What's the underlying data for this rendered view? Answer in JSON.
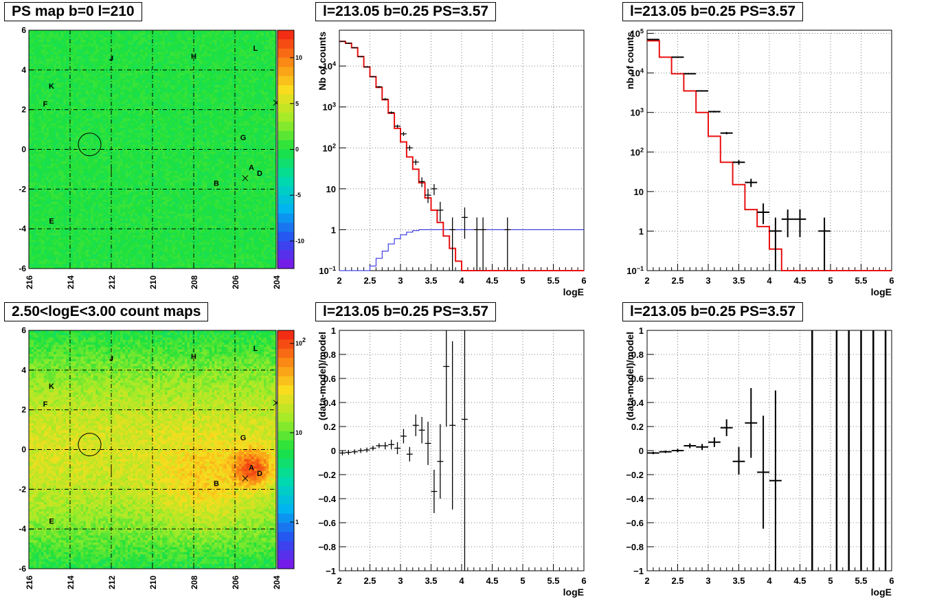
{
  "chart_data": [
    {
      "id": "ps_map",
      "type": "heatmap",
      "title": "PS map b=0 l=210",
      "xlim": [
        216,
        204
      ],
      "ylim": [
        -6,
        6
      ],
      "x_ticks": [
        "216",
        "214",
        "212",
        "210",
        "208",
        "206",
        "204"
      ],
      "y_ticks": [
        "-6",
        "-4",
        "-2",
        "0",
        "2",
        "4",
        "6"
      ],
      "colorbar": {
        "scale": "linear",
        "range": [
          -13,
          13
        ],
        "ticks": [
          "-10",
          "-5",
          "0",
          "5",
          "10"
        ]
      },
      "base_color": "#3fe23f",
      "grid": true,
      "circle": {
        "l": 213.05,
        "b": 0.25,
        "r": 0.55
      },
      "sources": [
        {
          "name": "J",
          "l": 212.0,
          "b": 4.6
        },
        {
          "name": "H",
          "l": 208.0,
          "b": 4.7
        },
        {
          "name": "L",
          "l": 205.0,
          "b": 5.1
        },
        {
          "name": "K",
          "l": 214.9,
          "b": 3.2
        },
        {
          "name": "F",
          "l": 215.2,
          "b": 2.3
        },
        {
          "name": "G",
          "l": 205.6,
          "b": 0.6
        },
        {
          "name": "A",
          "l": 205.2,
          "b": -0.9
        },
        {
          "name": "D",
          "l": 204.8,
          "b": -1.2
        },
        {
          "name": "B",
          "l": 206.9,
          "b": -1.7
        },
        {
          "name": "E",
          "l": 214.9,
          "b": -3.6
        }
      ],
      "markers": [
        {
          "l": 205.5,
          "b": -1.45
        },
        {
          "l": 204.0,
          "b": 2.35
        }
      ]
    },
    {
      "id": "spec_fine",
      "type": "line",
      "title": "l=213.05 b=0.25 PS=3.57",
      "xlabel": "logE",
      "ylabel": "Nb of counts",
      "xlim": [
        2,
        6
      ],
      "ylim": [
        0.1,
        75000
      ],
      "yscale": "log",
      "x_ticks": [
        "2",
        "2.5",
        "3",
        "3.5",
        "4",
        "4.5",
        "5",
        "5.5",
        "6"
      ],
      "y_ticks": [
        {
          "v": 0.1,
          "label": "10",
          "sup": "−1"
        },
        {
          "v": 1,
          "label": "1"
        },
        {
          "v": 10,
          "label": "10"
        },
        {
          "v": 100,
          "label": "10",
          "sup": "2"
        },
        {
          "v": 1000,
          "label": "10",
          "sup": "3"
        },
        {
          "v": 10000,
          "label": "10",
          "sup": "4"
        }
      ],
      "grid": true,
      "bin_width": 0.1,
      "model": [
        40000,
        36000,
        28000,
        17000,
        9500,
        5500,
        3000,
        1500,
        700,
        300,
        140,
        60,
        30,
        14,
        6,
        3,
        1.5,
        0.7,
        0.35,
        0.17,
        0.1,
        0.1,
        0.1,
        0.1,
        0.1,
        0.1,
        0.1,
        0.1,
        0.1,
        0.1,
        0.1,
        0.1,
        0.1,
        0.1,
        0.1,
        0.1,
        0.1,
        0.1,
        0.1,
        0.1
      ],
      "exposure": [
        0.1,
        0.1,
        0.1,
        0.1,
        0.1,
        0.13,
        0.2,
        0.3,
        0.45,
        0.6,
        0.75,
        0.87,
        0.95,
        1,
        1,
        1,
        1,
        1,
        1,
        1,
        1,
        1,
        1,
        1,
        1,
        1,
        1,
        1,
        1,
        1,
        1,
        1,
        1,
        1,
        1,
        1,
        1,
        1,
        1,
        1
      ],
      "points": [
        {
          "x": 2.05,
          "y": 40000,
          "lo": 39000,
          "hi": 41000
        },
        {
          "x": 2.15,
          "y": 36000,
          "lo": 35000,
          "hi": 37000
        },
        {
          "x": 2.25,
          "y": 28000,
          "lo": 27000,
          "hi": 29000
        },
        {
          "x": 2.35,
          "y": 17000,
          "lo": 16500,
          "hi": 17500
        },
        {
          "x": 2.45,
          "y": 9500,
          "lo": 9200,
          "hi": 9800
        },
        {
          "x": 2.55,
          "y": 5500,
          "lo": 5300,
          "hi": 5700
        },
        {
          "x": 2.65,
          "y": 3100,
          "lo": 2950,
          "hi": 3250
        },
        {
          "x": 2.75,
          "y": 1550,
          "lo": 1450,
          "hi": 1650
        },
        {
          "x": 2.85,
          "y": 730,
          "lo": 680,
          "hi": 780
        },
        {
          "x": 2.95,
          "y": 340,
          "lo": 310,
          "hi": 370
        },
        {
          "x": 3.05,
          "y": 220,
          "lo": 195,
          "hi": 245
        },
        {
          "x": 3.15,
          "y": 100,
          "lo": 85,
          "hi": 115
        },
        {
          "x": 3.25,
          "y": 45,
          "lo": 38,
          "hi": 52
        },
        {
          "x": 3.35,
          "y": 15,
          "lo": 11,
          "hi": 19
        },
        {
          "x": 3.45,
          "y": 7,
          "lo": 4.5,
          "hi": 10
        },
        {
          "x": 3.55,
          "y": 10,
          "lo": 7,
          "hi": 13
        },
        {
          "x": 3.65,
          "y": 3,
          "lo": 1.6,
          "hi": 4.8
        },
        {
          "x": 3.85,
          "y": 1,
          "lo": 0.1,
          "hi": 2
        },
        {
          "x": 4.05,
          "y": 2,
          "lo": 0.6,
          "hi": 3.5
        },
        {
          "x": 4.25,
          "y": 1,
          "lo": 0.1,
          "hi": 2
        },
        {
          "x": 4.35,
          "y": 1,
          "lo": 0.1,
          "hi": 2
        },
        {
          "x": 4.75,
          "y": 1,
          "lo": 0.1,
          "hi": 2
        }
      ]
    },
    {
      "id": "spec_coarse",
      "type": "line",
      "title": "l=213.05 b=0.25 PS=3.57",
      "xlabel": "logE",
      "ylabel": "nb of counts",
      "xlim": [
        2,
        6
      ],
      "ylim": [
        0.1,
        120000
      ],
      "yscale": "log",
      "x_ticks": [
        "2",
        "2.5",
        "3",
        "3.5",
        "4",
        "4.5",
        "5",
        "5.5",
        "6"
      ],
      "y_ticks": [
        {
          "v": 0.1,
          "label": "10",
          "sup": "−1"
        },
        {
          "v": 1,
          "label": "1"
        },
        {
          "v": 10,
          "label": "10"
        },
        {
          "v": 100,
          "label": "10",
          "sup": "2"
        },
        {
          "v": 1000,
          "label": "10",
          "sup": "3"
        },
        {
          "v": 10000,
          "label": "10",
          "sup": "4"
        },
        {
          "v": 100000,
          "label": "10",
          "sup": "5"
        }
      ],
      "grid": true,
      "bin_width": 0.2,
      "model": [
        65000,
        25000,
        9500,
        3500,
        1000,
        250,
        55,
        15,
        3.5,
        1.3,
        0.35,
        0.1,
        0.1,
        0.1,
        0.1,
        0.1,
        0.1,
        0.1,
        0.1,
        0.1
      ],
      "points": [
        {
          "x": 2.1,
          "y": 70000,
          "lo": 68000,
          "hi": 72000
        },
        {
          "x": 2.5,
          "y": 25000,
          "lo": 24500,
          "hi": 25500
        },
        {
          "x": 2.7,
          "y": 9500,
          "lo": 9200,
          "hi": 9800
        },
        {
          "x": 2.9,
          "y": 3500,
          "lo": 3400,
          "hi": 3600
        },
        {
          "x": 3.1,
          "y": 1050,
          "lo": 1000,
          "hi": 1100
        },
        {
          "x": 3.3,
          "y": 300,
          "lo": 280,
          "hi": 320
        },
        {
          "x": 3.5,
          "y": 55,
          "lo": 48,
          "hi": 62
        },
        {
          "x": 3.7,
          "y": 17,
          "lo": 13,
          "hi": 21
        },
        {
          "x": 3.9,
          "y": 3,
          "lo": 1.5,
          "hi": 5
        },
        {
          "x": 4.1,
          "y": 1,
          "lo": 0.1,
          "hi": 2.2
        },
        {
          "x": 4.3,
          "y": 2,
          "lo": 0.7,
          "hi": 3.5
        },
        {
          "x": 4.5,
          "y": 2,
          "lo": 0.7,
          "hi": 3.5
        },
        {
          "x": 4.9,
          "y": 1,
          "lo": 0.1,
          "hi": 2.2
        }
      ]
    },
    {
      "id": "count_map",
      "type": "heatmap",
      "title": "2.50<logE<3.00 count maps",
      "xlim": [
        216,
        204
      ],
      "ylim": [
        -6,
        6
      ],
      "x_ticks": [
        "216",
        "214",
        "212",
        "210",
        "208",
        "206",
        "204"
      ],
      "y_ticks": [
        "-6",
        "-4",
        "-2",
        "0",
        "2",
        "4",
        "6"
      ],
      "colorbar": {
        "scale": "log",
        "range": [
          0.3,
          140
        ],
        "ticks": [
          {
            "v": 1,
            "label": "1"
          },
          {
            "v": 10,
            "label": "10"
          },
          {
            "v": 100,
            "label": "10",
            "sup": "2"
          }
        ]
      },
      "grid": true,
      "circle": {
        "l": 213.05,
        "b": 0.25,
        "r": 0.55
      },
      "sources": [
        {
          "name": "J",
          "l": 212.0,
          "b": 4.6
        },
        {
          "name": "H",
          "l": 208.0,
          "b": 4.7
        },
        {
          "name": "L",
          "l": 205.0,
          "b": 5.1
        },
        {
          "name": "K",
          "l": 214.9,
          "b": 3.2
        },
        {
          "name": "F",
          "l": 215.2,
          "b": 2.3
        },
        {
          "name": "G",
          "l": 205.6,
          "b": 0.6
        },
        {
          "name": "A",
          "l": 205.2,
          "b": -0.9
        },
        {
          "name": "D",
          "l": 204.8,
          "b": -1.2
        },
        {
          "name": "B",
          "l": 206.9,
          "b": -1.7
        },
        {
          "name": "E",
          "l": 214.9,
          "b": -3.6
        }
      ],
      "markers": [
        {
          "l": 205.5,
          "b": -1.45
        },
        {
          "l": 204.0,
          "b": 2.35
        }
      ]
    },
    {
      "id": "resid_fine",
      "type": "scatter",
      "title": "l=213.05 b=0.25 PS=3.57",
      "xlabel": "logE",
      "ylabel": "(data-model)/model",
      "xlim": [
        2,
        6
      ],
      "ylim": [
        -1,
        1
      ],
      "x_ticks": [
        "2",
        "2.5",
        "3",
        "3.5",
        "4",
        "4.5",
        "5",
        "5.5",
        "6"
      ],
      "y_ticks": [
        "−1",
        "−0.8",
        "−0.6",
        "−0.4",
        "−0.2",
        "0",
        "0.2",
        "0.4",
        "0.6",
        "0.8",
        "1"
      ],
      "grid": true,
      "bin_width": 0.1,
      "points": [
        {
          "x": 2.05,
          "y": -0.02,
          "lo": -0.04,
          "hi": 0.0
        },
        {
          "x": 2.15,
          "y": -0.015,
          "lo": -0.035,
          "hi": 0.005
        },
        {
          "x": 2.25,
          "y": -0.01,
          "lo": -0.03,
          "hi": 0.01
        },
        {
          "x": 2.35,
          "y": 0.0,
          "lo": -0.02,
          "hi": 0.02
        },
        {
          "x": 2.45,
          "y": 0.005,
          "lo": -0.015,
          "hi": 0.025
        },
        {
          "x": 2.55,
          "y": 0.02,
          "lo": 0.0,
          "hi": 0.04
        },
        {
          "x": 2.65,
          "y": 0.04,
          "lo": 0.02,
          "hi": 0.06
        },
        {
          "x": 2.75,
          "y": 0.04,
          "lo": 0.01,
          "hi": 0.07
        },
        {
          "x": 2.85,
          "y": 0.05,
          "lo": 0.01,
          "hi": 0.09
        },
        {
          "x": 2.95,
          "y": 0.02,
          "lo": -0.03,
          "hi": 0.07
        },
        {
          "x": 3.05,
          "y": 0.12,
          "lo": 0.06,
          "hi": 0.18
        },
        {
          "x": 3.15,
          "y": -0.03,
          "lo": -0.09,
          "hi": 0.03
        },
        {
          "x": 3.25,
          "y": 0.21,
          "lo": 0.12,
          "hi": 0.3
        },
        {
          "x": 3.35,
          "y": 0.17,
          "lo": 0.06,
          "hi": 0.28
        },
        {
          "x": 3.45,
          "y": 0.06,
          "lo": -0.12,
          "hi": 0.24
        },
        {
          "x": 3.55,
          "y": -0.34,
          "lo": -0.52,
          "hi": -0.16
        },
        {
          "x": 3.65,
          "y": -0.09,
          "lo": -0.4,
          "hi": 0.22
        },
        {
          "x": 3.75,
          "y": 0.7,
          "lo": 0.2,
          "hi": 1.2
        },
        {
          "x": 3.85,
          "y": 0.21,
          "lo": -0.49,
          "hi": 0.91
        },
        {
          "x": 4.05,
          "y": 0.26,
          "lo": -1.2,
          "hi": 1.2
        }
      ]
    },
    {
      "id": "resid_coarse",
      "type": "scatter",
      "title": "l=213.05 b=0.25 PS=3.57",
      "xlabel": "logE",
      "ylabel": "(data-model)/model",
      "xlim": [
        2,
        6
      ],
      "ylim": [
        -1,
        1
      ],
      "x_ticks": [
        "2",
        "2.5",
        "3",
        "3.5",
        "4",
        "4.5",
        "5",
        "5.5",
        "6"
      ],
      "y_ticks": [
        "−1",
        "−0.8",
        "−0.6",
        "−0.4",
        "−0.2",
        "0",
        "0.2",
        "0.4",
        "0.6",
        "0.8",
        "1"
      ],
      "grid": true,
      "bin_width": 0.2,
      "points": [
        {
          "x": 2.1,
          "y": -0.02,
          "lo": -0.03,
          "hi": -0.01
        },
        {
          "x": 2.3,
          "y": -0.01,
          "lo": -0.02,
          "hi": 0.0
        },
        {
          "x": 2.5,
          "y": 0.0,
          "lo": -0.015,
          "hi": 0.015
        },
        {
          "x": 2.7,
          "y": 0.04,
          "lo": 0.02,
          "hi": 0.06
        },
        {
          "x": 2.9,
          "y": 0.03,
          "lo": 0.005,
          "hi": 0.055
        },
        {
          "x": 3.1,
          "y": 0.07,
          "lo": 0.03,
          "hi": 0.11
        },
        {
          "x": 3.3,
          "y": 0.19,
          "lo": 0.12,
          "hi": 0.26
        },
        {
          "x": 3.5,
          "y": -0.09,
          "lo": -0.2,
          "hi": 0.03
        },
        {
          "x": 3.7,
          "y": 0.23,
          "lo": -0.06,
          "hi": 0.52
        },
        {
          "x": 3.9,
          "y": -0.18,
          "lo": -0.65,
          "hi": 0.29
        },
        {
          "x": 4.1,
          "y": -0.25,
          "lo": -1.2,
          "hi": 0.5
        }
      ],
      "vertical_lines_x": [
        4.7,
        5.1,
        5.3,
        5.5,
        5.7,
        5.9
      ]
    }
  ]
}
